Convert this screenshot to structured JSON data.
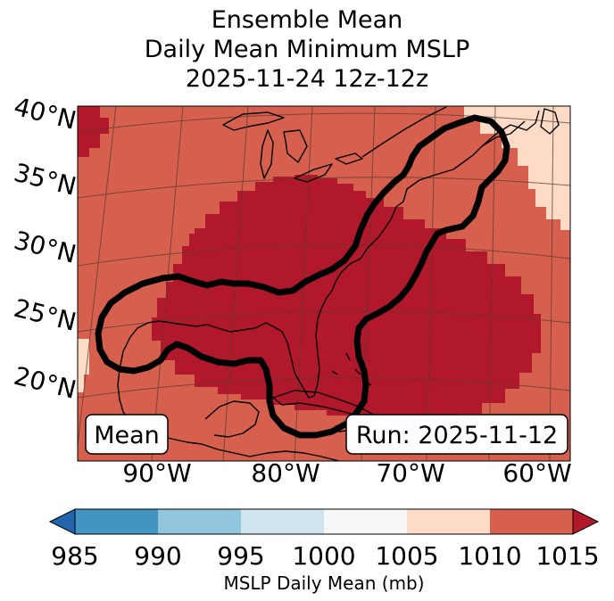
{
  "title": {
    "line1": "Ensemble Mean",
    "line2": "Daily Mean Minimum MSLP",
    "line3": "2025-11-24 12z-12z"
  },
  "map": {
    "lat_labels": [
      "40°N",
      "35°N",
      "30°N",
      "25°N",
      "20°N"
    ],
    "lon_labels": [
      "90°W",
      "80°W",
      "70°W",
      "60°W"
    ],
    "mean_label": "Mean",
    "run_label": "Run: 2025-11-12",
    "colors": {
      "band_1015_plus": "#b2182b",
      "band_1010_1015": "#d6604d",
      "band_1005_1010": "#fddbc7",
      "contour": "#000000",
      "coast": "#000000",
      "grid": "#5a3a30"
    }
  },
  "colorbar": {
    "ticks": [
      "985",
      "990",
      "995",
      "1000",
      "1005",
      "1010",
      "1015"
    ],
    "label": "MSLP Daily Mean (mb)",
    "colors": [
      "#2166ac",
      "#4393c3",
      "#92c5de",
      "#d1e5f0",
      "#f7f7f7",
      "#fddbc7",
      "#d6604d",
      "#b2182b"
    ]
  }
}
